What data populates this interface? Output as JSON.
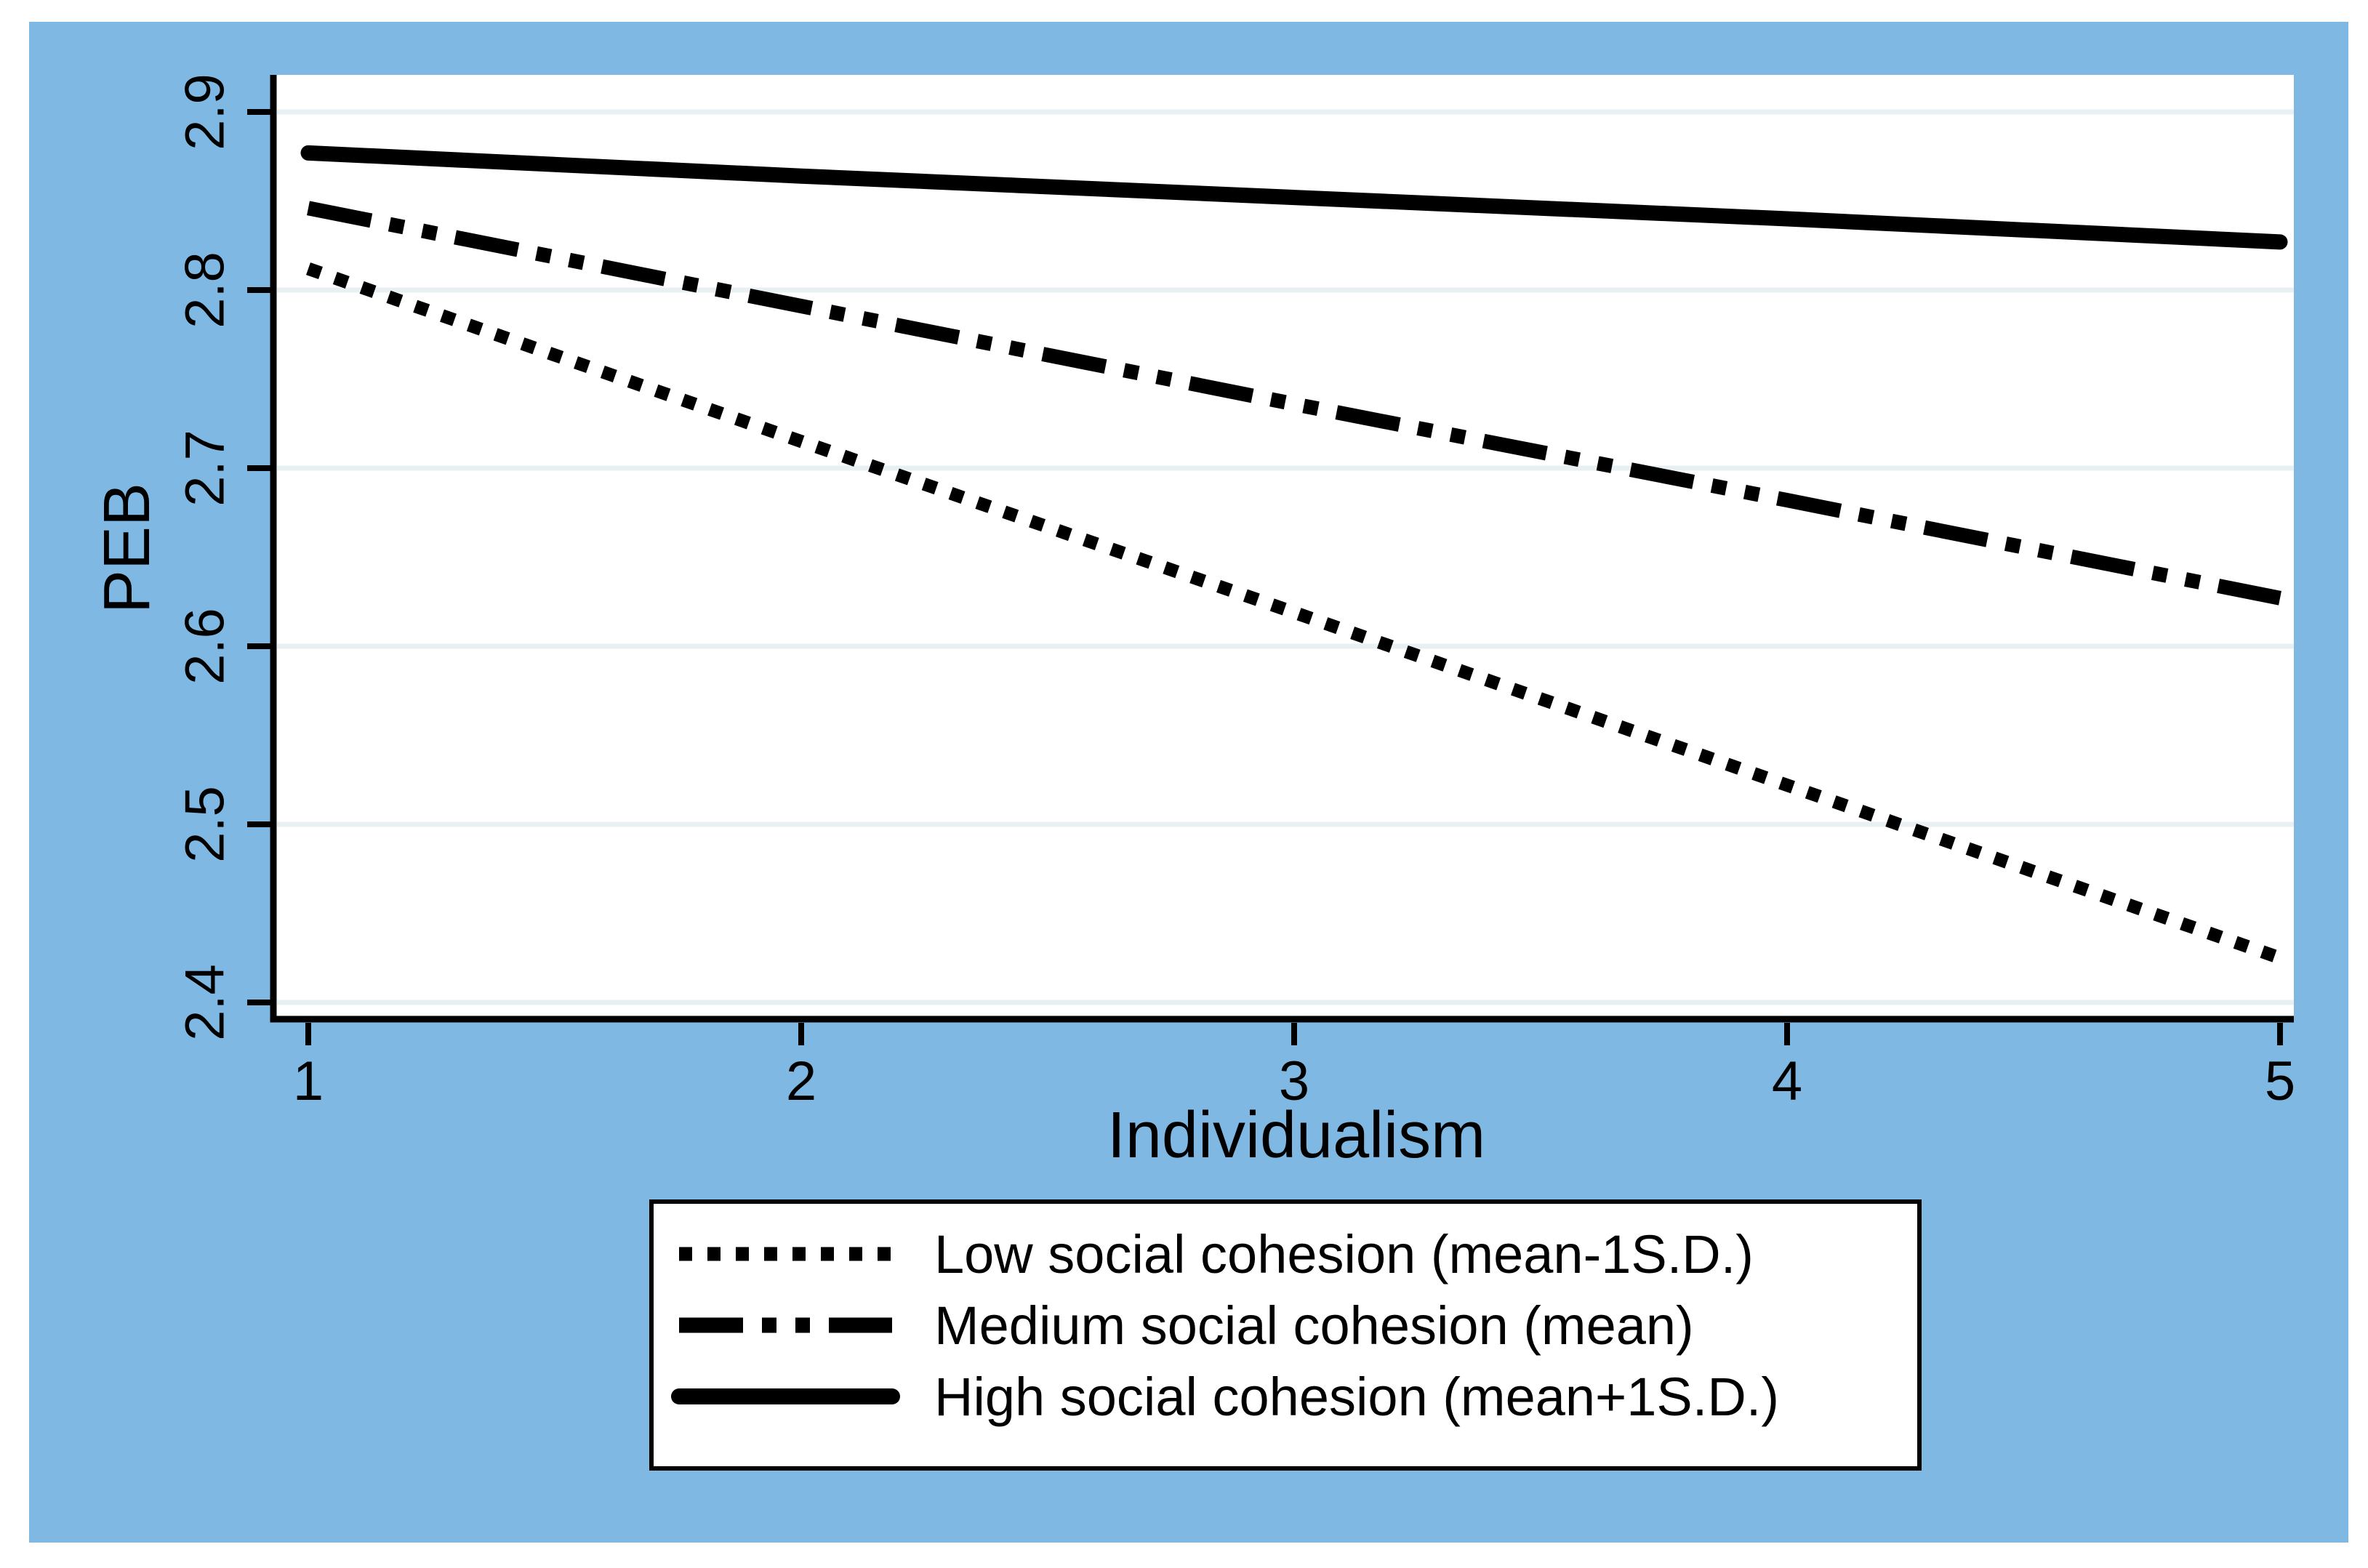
{
  "figure": {
    "background_color": "#7FB9E3",
    "plot_background_color": "#FFFFFF",
    "gridline_color": "#E9F0F3",
    "axis_color": "#000000",
    "line_color": "#000000",
    "legend_border_color": "#000000"
  },
  "chart_data": {
    "type": "line",
    "title": "",
    "xlabel": "Individualism",
    "ylabel": "PEB",
    "x": [
      1,
      2,
      3,
      4,
      5
    ],
    "xtick_labels": [
      "1",
      "2",
      "3",
      "4",
      "5"
    ],
    "yticks": [
      2.4,
      2.5,
      2.6,
      2.7,
      2.8,
      2.9
    ],
    "ytick_labels": [
      "2.4",
      "2.5",
      "2.6",
      "2.7",
      "2.8",
      "2.9"
    ],
    "xlim": [
      0.93,
      5.03
    ],
    "ylim": [
      2.38,
      2.92
    ],
    "grid": true,
    "legend_position": "bottom-center",
    "series": [
      {
        "name": "Low social cohesion (mean-1S.D.)",
        "style": "dotted",
        "color": "#000000",
        "values": [
          2.812,
          2.715,
          2.619,
          2.522,
          2.425
        ]
      },
      {
        "name": "Medium social cohesion (mean)",
        "style": "dash-dot-dot",
        "color": "#000000",
        "values": [
          2.846,
          2.791,
          2.736,
          2.682,
          2.627
        ]
      },
      {
        "name": "High social cohesion (mean+1S.D.)",
        "style": "solid",
        "color": "#000000",
        "values": [
          2.877,
          2.864,
          2.852,
          2.84,
          2.827
        ]
      }
    ]
  }
}
